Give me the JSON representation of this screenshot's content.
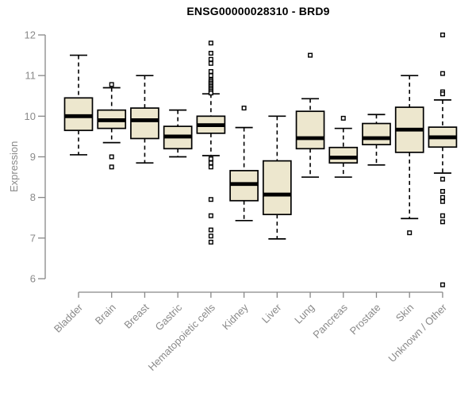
{
  "page": {
    "background": "#ffffff"
  },
  "chart_data": {
    "type": "boxplot",
    "title": "ENSG00000028310 - BRD9",
    "ylabel": "Expression",
    "xlabel": "",
    "ylim": [
      6,
      12
    ],
    "yticks": [
      6,
      7,
      8,
      9,
      10,
      11,
      12
    ],
    "grid": false,
    "legend": "none",
    "categories": [
      "Bladder",
      "Brain",
      "Breast",
      "Gastric",
      "Hematopoietic cells",
      "Kidney",
      "Liver",
      "Lung",
      "Pancreas",
      "Prostate",
      "Skin",
      "Unknown / Other"
    ],
    "boxes": [
      {
        "category": "Bladder",
        "whisker_low": 9.05,
        "q1": 9.65,
        "median": 10.0,
        "q3": 10.45,
        "whisker_high": 11.5,
        "outliers": []
      },
      {
        "category": "Brain",
        "whisker_low": 9.35,
        "q1": 9.7,
        "median": 9.9,
        "q3": 10.15,
        "whisker_high": 10.7,
        "outliers": [
          10.78,
          9.0,
          8.75
        ]
      },
      {
        "category": "Breast",
        "whisker_low": 8.85,
        "q1": 9.45,
        "median": 9.9,
        "q3": 10.2,
        "whisker_high": 11.0,
        "outliers": []
      },
      {
        "category": "Gastric",
        "whisker_low": 9.0,
        "q1": 9.2,
        "median": 9.5,
        "q3": 9.75,
        "whisker_high": 10.15,
        "outliers": []
      },
      {
        "category": "Hematopoietic cells",
        "whisker_low": 9.03,
        "q1": 9.58,
        "median": 9.78,
        "q3": 10.0,
        "whisker_high": 10.55,
        "outliers": [
          11.8,
          11.55,
          11.4,
          11.3,
          11.1,
          11.0,
          10.89,
          10.85,
          10.81,
          10.77,
          10.73,
          10.69,
          10.65,
          10.61,
          10.57,
          8.95,
          8.85,
          8.75,
          7.95,
          7.55,
          7.2,
          7.05,
          6.9
        ]
      },
      {
        "category": "Kidney",
        "whisker_low": 7.43,
        "q1": 7.92,
        "median": 8.33,
        "q3": 8.66,
        "whisker_high": 9.72,
        "outliers": [
          10.2
        ]
      },
      {
        "category": "Liver",
        "whisker_low": 6.98,
        "q1": 7.58,
        "median": 8.07,
        "q3": 8.9,
        "whisker_high": 10.0,
        "outliers": []
      },
      {
        "category": "Lung",
        "whisker_low": 8.5,
        "q1": 9.2,
        "median": 9.46,
        "q3": 10.12,
        "whisker_high": 10.43,
        "outliers": [
          11.5
        ]
      },
      {
        "category": "Pancreas",
        "whisker_low": 8.5,
        "q1": 8.85,
        "median": 8.98,
        "q3": 9.23,
        "whisker_high": 9.7,
        "outliers": [
          9.95
        ]
      },
      {
        "category": "Prostate",
        "whisker_low": 8.8,
        "q1": 9.3,
        "median": 9.46,
        "q3": 9.82,
        "whisker_high": 10.04,
        "outliers": []
      },
      {
        "category": "Skin",
        "whisker_low": 7.48,
        "q1": 9.11,
        "median": 9.67,
        "q3": 10.22,
        "whisker_high": 11.0,
        "outliers": [
          7.13
        ]
      },
      {
        "category": "Unknown / Other",
        "whisker_low": 8.6,
        "q1": 9.24,
        "median": 9.48,
        "q3": 9.73,
        "whisker_high": 10.4,
        "outliers": [
          12.0,
          11.05,
          10.6,
          10.55,
          8.45,
          8.15,
          8.0,
          7.9,
          7.55,
          7.4,
          5.85
        ]
      }
    ],
    "style": {
      "box_fill": "#EDE7CE",
      "box_stroke": "#000000",
      "median_color": "#000000",
      "whisker_color": "#000000",
      "outlier_fill": "#FFFFFF",
      "outlier_stroke": "#000000",
      "axis_color": "#878787",
      "tick_label_color": "#8A8A8A",
      "title_color": "#000000",
      "background": "#FFFFFF"
    }
  }
}
